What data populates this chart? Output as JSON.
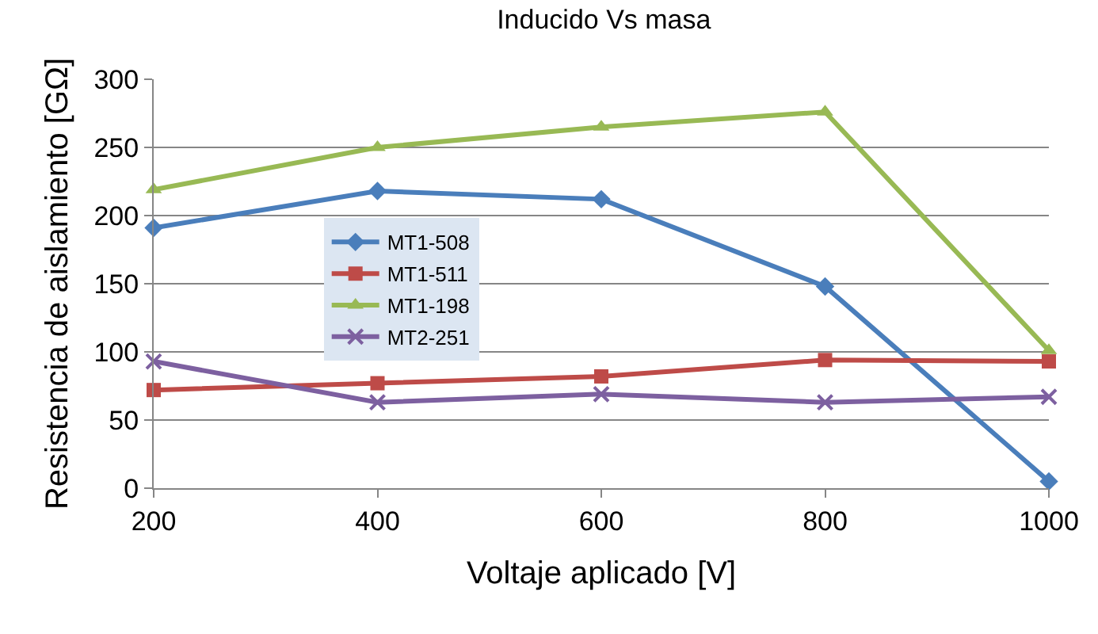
{
  "chart_data": {
    "type": "line",
    "title": "Inducido Vs masa",
    "xlabel": "Voltaje aplicado [V]",
    "ylabel": "Resistencia de aislamiento [GΩ]",
    "x": [
      200,
      400,
      600,
      800,
      1000
    ],
    "series": [
      {
        "name": "MT1-508",
        "color": "#4a7ebb",
        "marker": "diamond",
        "values": [
          191,
          218,
          212,
          148,
          5
        ]
      },
      {
        "name": "MT1-511",
        "color": "#be4b48",
        "marker": "square",
        "values": [
          72,
          77,
          82,
          94,
          93
        ]
      },
      {
        "name": "MT1-198",
        "color": "#98b954",
        "marker": "triangle",
        "values": [
          219,
          250,
          265,
          276,
          101
        ]
      },
      {
        "name": "MT2-251",
        "color": "#7d60a0",
        "marker": "cross",
        "values": [
          93,
          63,
          69,
          63,
          67
        ]
      }
    ],
    "xlim": [
      200,
      1000
    ],
    "xticks": [
      200,
      400,
      600,
      800,
      1000
    ],
    "ylim": [
      0,
      300
    ],
    "yticks": [
      0,
      50,
      100,
      150,
      200,
      250,
      300
    ],
    "grid": "y",
    "legend": "left",
    "line_style": "solid"
  }
}
